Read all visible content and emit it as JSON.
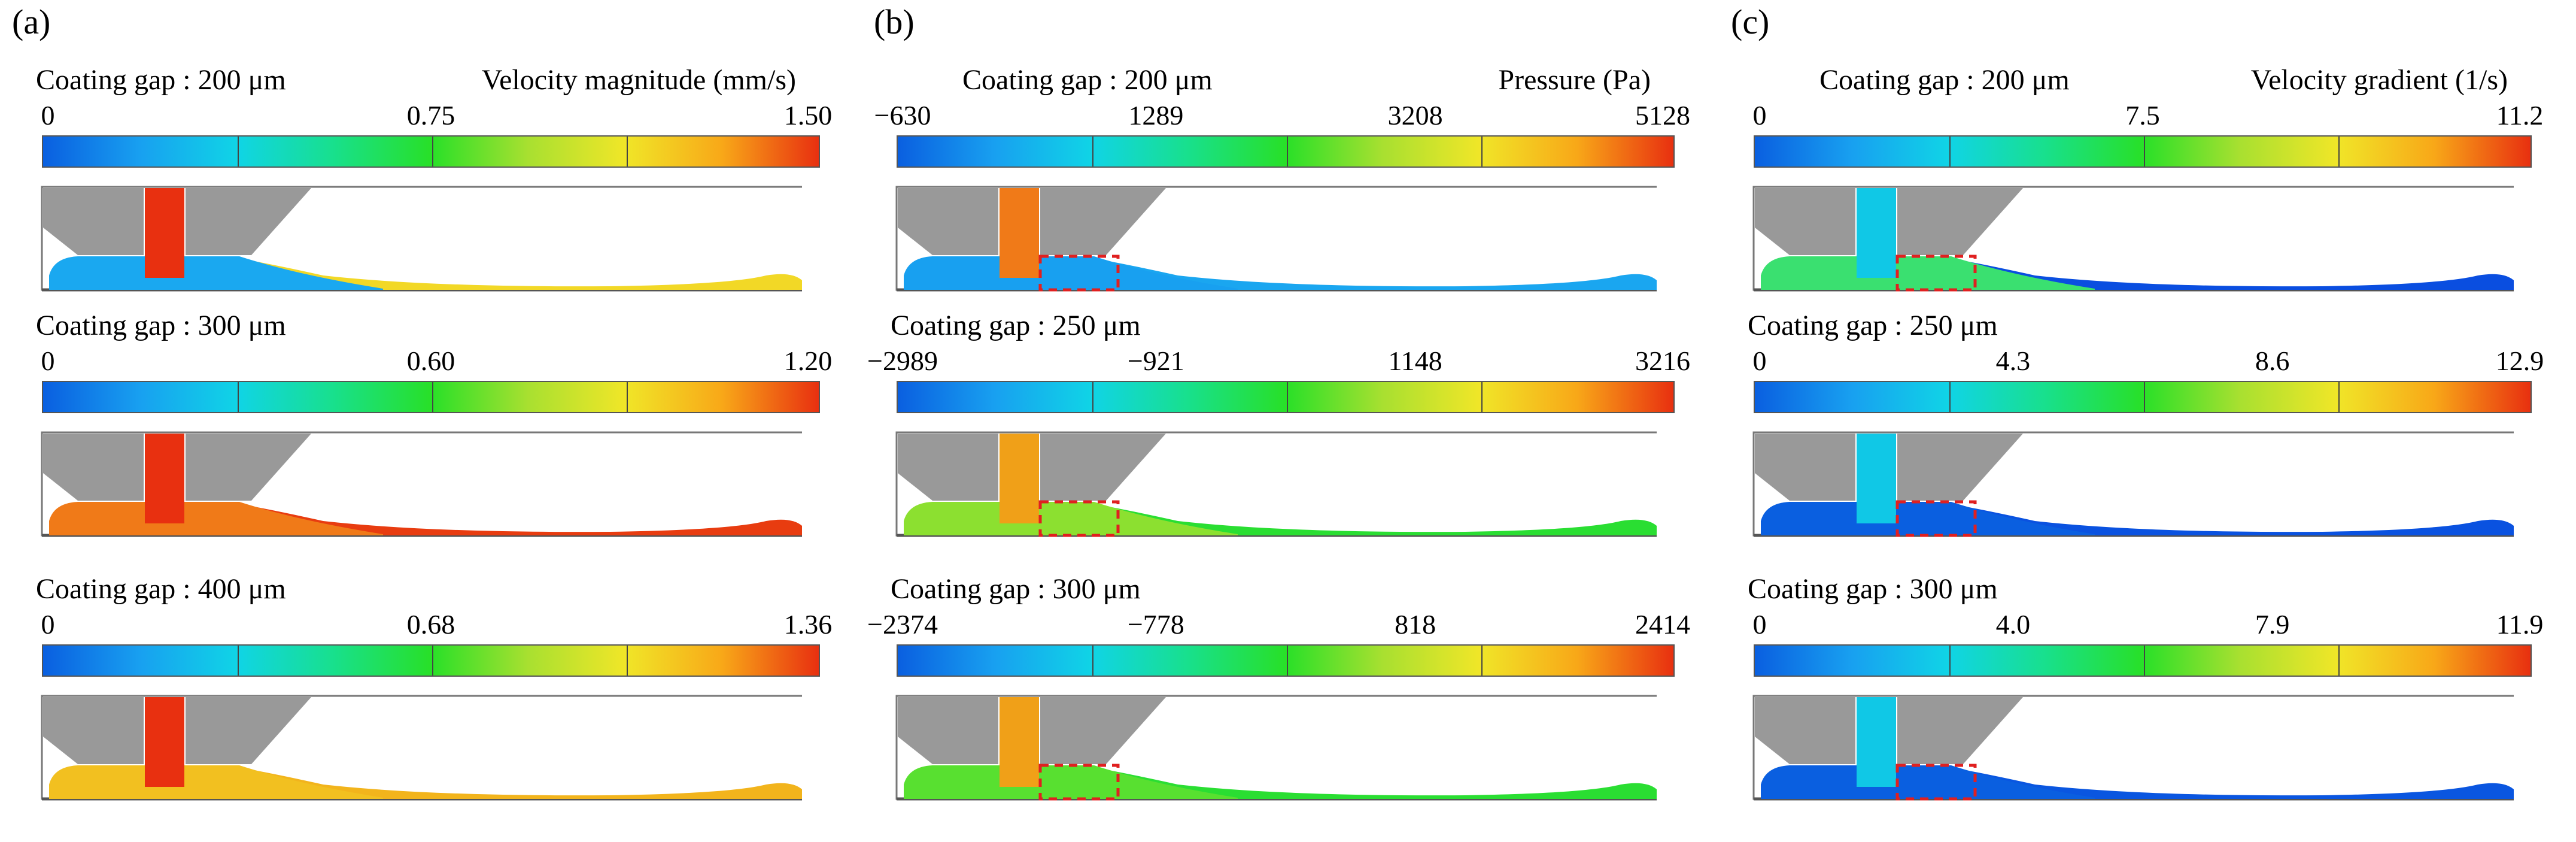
{
  "colormap": [
    "#0a5fe0",
    "#18a0f0",
    "#10d4e6",
    "#18e08c",
    "#28e028",
    "#a8e030",
    "#f0e628",
    "#f8a818",
    "#e83010"
  ],
  "columns": [
    {
      "panel": "(a)",
      "quantity": "Velocity magnitude (mm/s)",
      "rows": [
        {
          "gap_label": "Coating gap : 200 μm",
          "ticks": [
            "0",
            "0.75",
            "1.50"
          ],
          "channel_color": "#1aa8f0",
          "film_color": "#f2d826",
          "inlet_color": "#e83010",
          "highlight": false
        },
        {
          "gap_label": "Coating gap : 300 μm",
          "ticks": [
            "0",
            "0.60",
            "1.20"
          ],
          "channel_color": "#f07a18",
          "film_color": "#e83c10",
          "inlet_color": "#e83010",
          "highlight": false
        },
        {
          "gap_label": "Coating gap : 400 μm",
          "ticks": [
            "0",
            "0.68",
            "1.36"
          ],
          "channel_color": "#f2c020",
          "film_color": "#f2b41c",
          "inlet_color": "#e83010",
          "highlight": false
        }
      ]
    },
    {
      "panel": "(b)",
      "quantity": "Pressure (Pa)",
      "rows": [
        {
          "gap_label": "Coating gap : 200 μm",
          "ticks": [
            "−630",
            "1289",
            "3208",
            "5128"
          ],
          "channel_color": "#18a0f0",
          "film_color": "#1aa6f0",
          "inlet_color": "#f07a18",
          "highlight": true
        },
        {
          "gap_label": "Coating gap : 250 μm",
          "ticks": [
            "−2989",
            "−921",
            "1148",
            "3216"
          ],
          "channel_color": "#8ce030",
          "film_color": "#2ade32",
          "inlet_color": "#f0a018",
          "highlight": true
        },
        {
          "gap_label": "Coating gap : 300 μm",
          "ticks": [
            "−2374",
            "−778",
            "818",
            "2414"
          ],
          "channel_color": "#58e030",
          "film_color": "#2ade32",
          "inlet_color": "#f0a018",
          "highlight": true
        }
      ]
    },
    {
      "panel": "(c)",
      "quantity": "Velocity gradient (1/s)",
      "rows": [
        {
          "gap_label": "Coating gap : 200 μm",
          "ticks": [
            "0",
            "7.5",
            "11.2"
          ],
          "channel_color": "#3ae070",
          "film_color": "#0a4ee0",
          "inlet_color": "#10c8e6",
          "highlight": true
        },
        {
          "gap_label": "Coating gap : 250 μm",
          "ticks": [
            "0",
            "4.3",
            "8.6",
            "12.9"
          ],
          "channel_color": "#0a5fe0",
          "film_color": "#0a52e0",
          "inlet_color": "#10c8e6",
          "highlight": true
        },
        {
          "gap_label": "Coating gap : 300 μm",
          "ticks": [
            "0",
            "4.0",
            "7.9",
            "11.9"
          ],
          "channel_color": "#0a5fe0",
          "film_color": "#0a56e0",
          "inlet_color": "#10c8e6",
          "highlight": true
        }
      ]
    }
  ]
}
